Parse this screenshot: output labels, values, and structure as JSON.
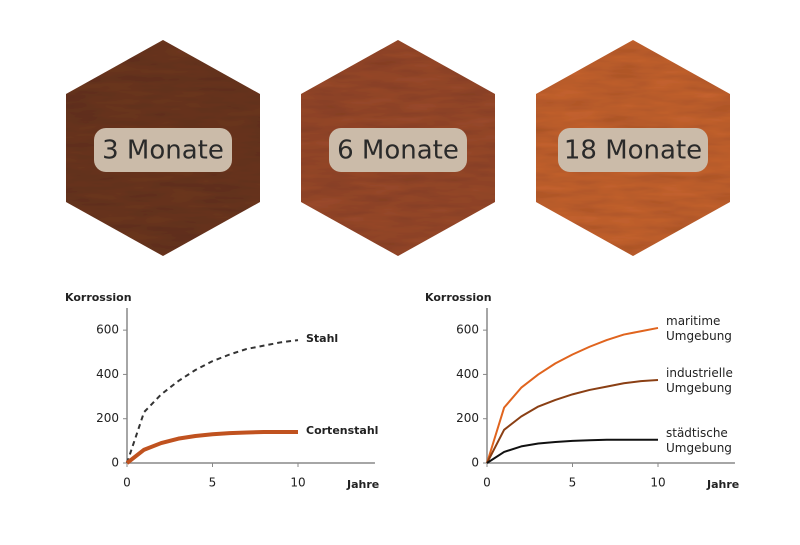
{
  "panels": [
    {
      "label": "3 Monate",
      "color": "#6e3720"
    },
    {
      "label": "6 Monate",
      "color": "#9c4a2b"
    },
    {
      "label": "18 Monate",
      "color": "#c9642f"
    }
  ],
  "chart_data": [
    {
      "type": "line",
      "y_label": "Korrossion",
      "x_label": "Jahre",
      "x": [
        0,
        1,
        2,
        3,
        4,
        5,
        6,
        7,
        8,
        9,
        10
      ],
      "xlim": [
        0,
        14.5
      ],
      "ylim": [
        0,
        700
      ],
      "xticks": [
        0,
        5,
        10
      ],
      "yticks": [
        0,
        200,
        400,
        600
      ],
      "series": [
        {
          "name": "Stahl",
          "color": "#333333",
          "line_style": "dashed",
          "values": [
            0,
            230,
            310,
            370,
            420,
            460,
            490,
            515,
            530,
            545,
            555
          ]
        },
        {
          "name": "Cortenstahl",
          "color": "#c0521f",
          "line_style": "thick",
          "values": [
            0,
            60,
            90,
            110,
            122,
            130,
            135,
            138,
            140,
            140,
            140
          ]
        }
      ]
    },
    {
      "type": "line",
      "y_label": "Korrossion",
      "x_label": "Jahre",
      "x": [
        0,
        1,
        2,
        3,
        4,
        5,
        6,
        7,
        8,
        9,
        10
      ],
      "xlim": [
        0,
        14.5
      ],
      "ylim": [
        0,
        700
      ],
      "xticks": [
        0,
        5,
        10
      ],
      "yticks": [
        0,
        200,
        400,
        600
      ],
      "series": [
        {
          "name": "maritime Umgebung",
          "color": "#e0641e",
          "line_style": "solid",
          "values": [
            0,
            250,
            340,
            400,
            450,
            490,
            525,
            555,
            580,
            595,
            610
          ]
        },
        {
          "name": "industrielle Umgebung",
          "color": "#8a3f14",
          "line_style": "solid",
          "values": [
            0,
            150,
            210,
            255,
            285,
            310,
            330,
            345,
            360,
            370,
            375
          ]
        },
        {
          "name": "städtische Umgebung",
          "color": "#111111",
          "line_style": "solid",
          "values": [
            0,
            50,
            75,
            88,
            95,
            100,
            103,
            105,
            105,
            105,
            105
          ]
        }
      ]
    }
  ]
}
